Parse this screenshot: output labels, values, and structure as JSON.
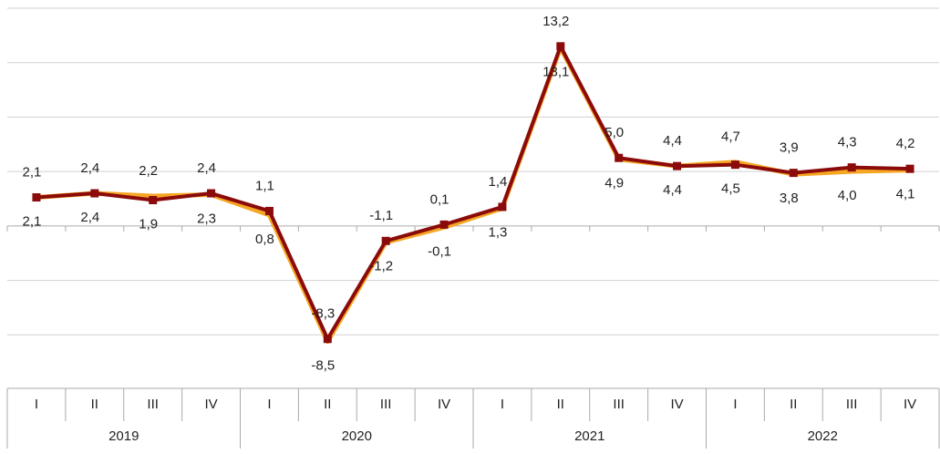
{
  "chart_data": {
    "type": "line",
    "categories": [
      "I",
      "II",
      "III",
      "IV",
      "I",
      "II",
      "III",
      "IV",
      "I",
      "II",
      "III",
      "IV",
      "I",
      "II",
      "III",
      "IV"
    ],
    "years": [
      "2019",
      "2020",
      "2021",
      "2022"
    ],
    "series": [
      {
        "color": "#f5a623",
        "values": [
          2.1,
          2.4,
          2.2,
          2.3,
          0.8,
          -8.5,
          -1.2,
          -0.1,
          1.3,
          13.1,
          4.9,
          4.4,
          4.7,
          3.8,
          4.0,
          4.1
        ],
        "value_labels": [
          "2,1",
          "2,4",
          "2,2",
          "2,3",
          "0,8",
          "-8,5",
          "-1,2",
          "-0,1",
          "1,3",
          "13,1",
          "4,9",
          "4,4",
          "4,7",
          "3,8",
          "4,0",
          "4,1"
        ]
      },
      {
        "color": "#8b0a0a",
        "values": [
          2.1,
          2.4,
          1.9,
          2.4,
          1.1,
          -8.3,
          -1.1,
          0.1,
          1.4,
          13.2,
          5.0,
          4.4,
          4.5,
          3.9,
          4.3,
          4.2
        ],
        "value_labels": [
          "2,1",
          "2,4",
          "1,9",
          "2,4",
          "1,1",
          "-8,3",
          "-1,1",
          "0,1",
          "1,4",
          "13,2",
          "5,0",
          "4,4",
          "4,5",
          "3,9",
          "4,3",
          "4,2"
        ]
      }
    ],
    "ylim": [
      -12,
      16
    ],
    "yticks": [
      -8,
      -4,
      0,
      4,
      8,
      12,
      16
    ],
    "grid": true
  }
}
